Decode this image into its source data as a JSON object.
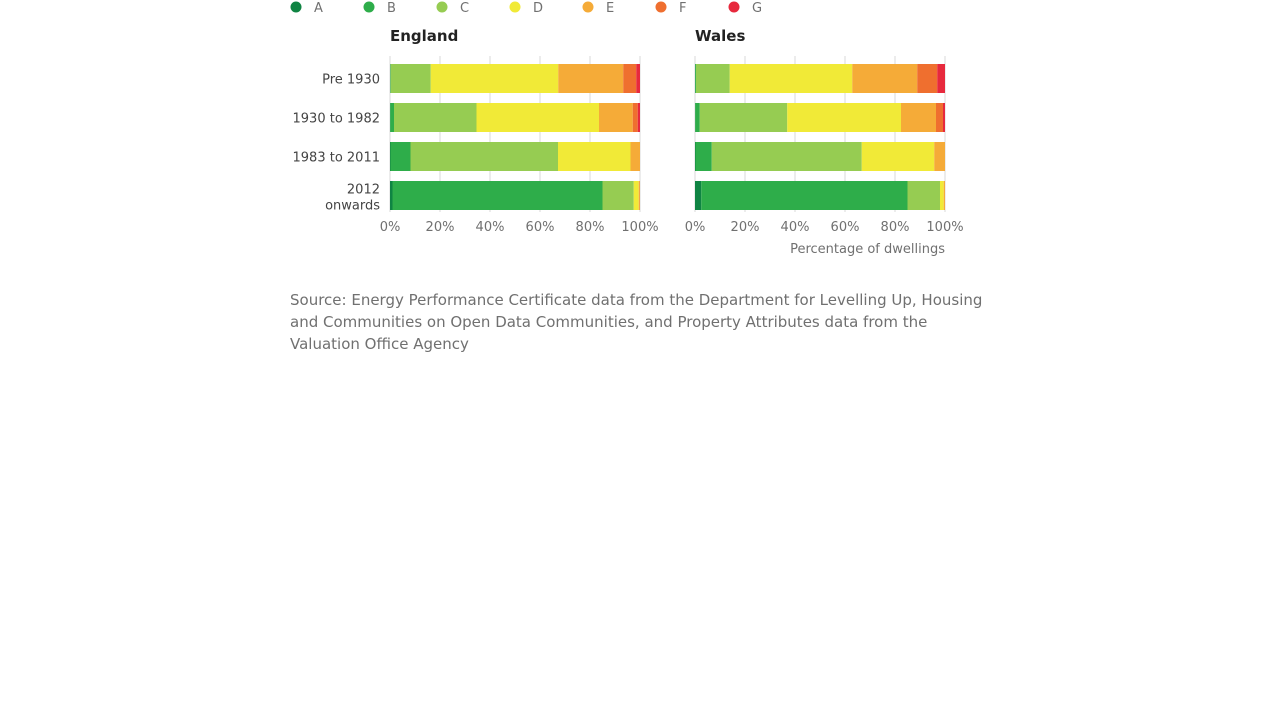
{
  "chart_data": {
    "type": "bar",
    "orientation": "horizontal",
    "stacked": true,
    "legend": {
      "position": "top-left",
      "entries": [
        {
          "name": "A",
          "color": "#0f8443"
        },
        {
          "name": "B",
          "color": "#2ead4a"
        },
        {
          "name": "C",
          "color": "#96cc52"
        },
        {
          "name": "D",
          "color": "#f1ea37"
        },
        {
          "name": "E",
          "color": "#f5ab38"
        },
        {
          "name": "F",
          "color": "#ef6f2f"
        },
        {
          "name": "G",
          "color": "#e7293d"
        }
      ]
    },
    "categories": [
      "Pre 1930",
      "1930 to 1982",
      "1983 to 2011",
      "2012 onwards"
    ],
    "xlim": [
      0,
      100
    ],
    "x_ticks": [
      "0%",
      "20%",
      "40%",
      "60%",
      "80%",
      "100%"
    ],
    "xlabel": "Percentage of dwellings",
    "grid": true,
    "panels": [
      {
        "title": "England",
        "series": [
          {
            "name": "A",
            "values": [
              0.1,
              0.1,
              0.2,
              1.0
            ]
          },
          {
            "name": "B",
            "values": [
              0.2,
              1.5,
              8.0,
              84.0
            ]
          },
          {
            "name": "C",
            "values": [
              16.0,
              33.0,
              59.0,
              12.5
            ]
          },
          {
            "name": "D",
            "values": [
              51.0,
              49.0,
              29.0,
              2.0
            ]
          },
          {
            "name": "E",
            "values": [
              26.0,
              13.5,
              3.8,
              0.4
            ]
          },
          {
            "name": "F",
            "values": [
              5.2,
              2.0,
              0.0,
              0.1
            ]
          },
          {
            "name": "G",
            "values": [
              1.5,
              0.9,
              0.0,
              0.0
            ]
          }
        ]
      },
      {
        "title": "Wales",
        "series": [
          {
            "name": "A",
            "values": [
              0.1,
              0.1,
              0.2,
              2.5
            ]
          },
          {
            "name": "B",
            "values": [
              0.3,
              1.8,
              6.5,
              82.5
            ]
          },
          {
            "name": "C",
            "values": [
              13.5,
              35.0,
              60.0,
              13.0
            ]
          },
          {
            "name": "D",
            "values": [
              49.0,
              45.5,
              29.0,
              1.5
            ]
          },
          {
            "name": "E",
            "values": [
              26.0,
              14.0,
              4.3,
              0.5
            ]
          },
          {
            "name": "F",
            "values": [
              8.0,
              2.8,
              0.0,
              0.0
            ]
          },
          {
            "name": "G",
            "values": [
              3.1,
              0.8,
              0.0,
              0.0
            ]
          }
        ]
      }
    ]
  },
  "source_note": "Source: Energy Performance Certificate data from the Department for Levelling Up, Housing and Communities on Open Data Communities, and Property Attributes data from the Valuation Office Agency"
}
